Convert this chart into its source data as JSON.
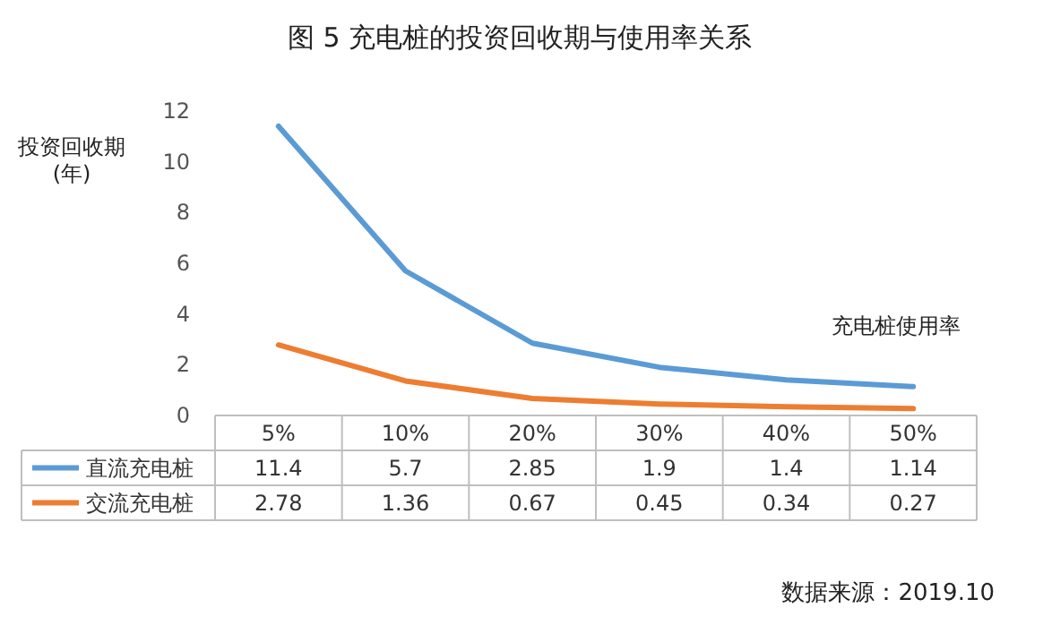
{
  "chart_data": {
    "type": "line",
    "title": "图 5 充电桩的投资回收期与使用率关系",
    "xlabel": "充电桩使用率",
    "ylabel": "投资回收期\n(年)",
    "categories": [
      "5%",
      "10%",
      "20%",
      "30%",
      "40%",
      "50%"
    ],
    "series": [
      {
        "name": "直流充电桩",
        "color": "#5b9bd5",
        "values": [
          11.4,
          5.7,
          2.85,
          1.9,
          1.4,
          1.14
        ]
      },
      {
        "name": "交流充电桩",
        "color": "#ed7d31",
        "values": [
          2.78,
          1.36,
          0.67,
          0.45,
          0.34,
          0.27
        ]
      }
    ],
    "ylim": [
      0,
      12
    ],
    "yticks": [
      0,
      2,
      4,
      6,
      8,
      10,
      12
    ],
    "grid": false,
    "data_labels": true,
    "legend": "bottom",
    "marker": "none",
    "line_style": "solid",
    "annotations": [
      "数据来源：2019.10"
    ]
  }
}
